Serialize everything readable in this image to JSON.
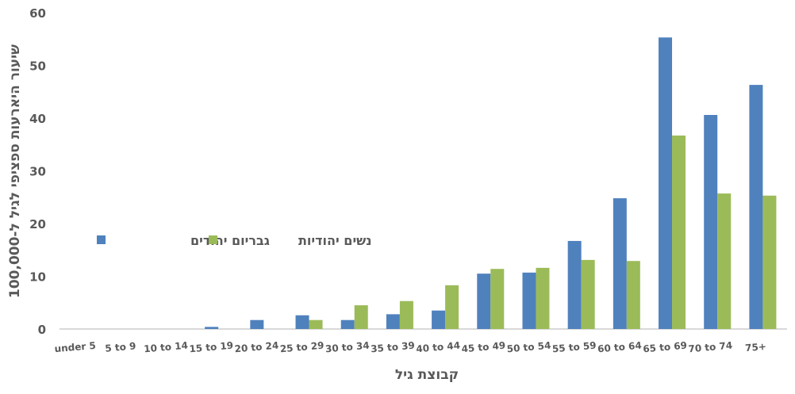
{
  "chart_data": {
    "type": "bar",
    "title": "",
    "xlabel": "קבוצת גיל",
    "ylabel": "שיעור היארעות ספציפי לגיל ל-100,000",
    "ylim": [
      0,
      60
    ],
    "yticks": [
      "0",
      "10",
      "20",
      "30",
      "40",
      "50",
      "60"
    ],
    "grid": false,
    "legend_position": "middle-left",
    "categories": [
      "under 5",
      "5 to 9",
      "10 to 14",
      "15 to 19",
      "20 to 24",
      "25 to 29",
      "30 to 34",
      "35 to 39",
      "40 to 44",
      "45 to 49",
      "50 to 54",
      "55 to 59",
      "60 to 64",
      "65 to 69",
      "70 to 74",
      "75+"
    ],
    "series": [
      {
        "name": "גבריום יהודים",
        "color": "#4f81bd",
        "values": [
          0,
          0,
          0,
          0.4,
          1.7,
          2.6,
          1.7,
          2.8,
          3.5,
          10.5,
          10.7,
          16.7,
          24.8,
          55.3,
          40.6,
          46.3
        ]
      },
      {
        "name": "נשים יהודיות",
        "color": "#9bbb59",
        "values": [
          0,
          0,
          0,
          0,
          0,
          1.7,
          4.5,
          5.3,
          8.3,
          11.4,
          11.6,
          13.1,
          12.9,
          36.7,
          25.7,
          25.3
        ]
      }
    ]
  }
}
